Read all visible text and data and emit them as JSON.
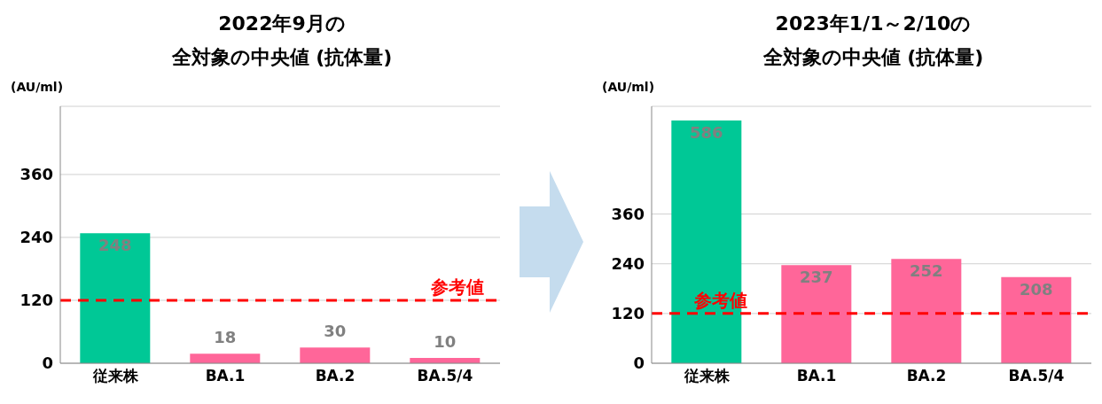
{
  "chart_data": [
    {
      "type": "bar",
      "title": "2022年9月の",
      "subtitle": "全対象の中央値 (抗体量)",
      "ylabel": "(AU/ml)",
      "categories": [
        "従来株",
        "BA.1",
        "BA.2",
        "BA.5/4"
      ],
      "values": [
        248,
        18,
        30,
        10
      ],
      "colors": [
        "#00c896",
        "#ff6699",
        "#ff6699",
        "#ff6699"
      ],
      "ylim": [
        0,
        490
      ],
      "yticks": [
        0,
        120,
        240,
        360
      ],
      "grid": "y",
      "data_labels": true,
      "ref_lines": [
        {
          "axis": "y",
          "value": 120,
          "label": "参考値",
          "color": "#ff0000",
          "line_style": "dashed"
        }
      ]
    },
    {
      "type": "bar",
      "title": "2023年1/1～2/10の",
      "subtitle": "全対象の中央値 (抗体量)",
      "ylabel": "(AU/ml)",
      "categories": [
        "従来株",
        "BA.1",
        "BA.2",
        "BA.5/4"
      ],
      "values": [
        586,
        237,
        252,
        208
      ],
      "colors": [
        "#00c896",
        "#ff6699",
        "#ff6699",
        "#ff6699"
      ],
      "ylim": [
        0,
        620
      ],
      "yticks": [
        0,
        120,
        240,
        360
      ],
      "grid": "y",
      "data_labels": true,
      "ref_lines": [
        {
          "axis": "y",
          "value": 120,
          "label": "参考値",
          "color": "#ff0000",
          "line_style": "dashed"
        }
      ]
    }
  ]
}
